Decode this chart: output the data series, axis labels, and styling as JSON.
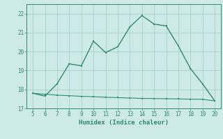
{
  "xlabel": "Humidex (Indice chaleur)",
  "x_main": [
    5,
    6,
    7,
    8,
    9,
    10,
    11,
    12,
    13,
    14,
    15,
    16,
    17,
    18,
    19,
    20
  ],
  "y_main": [
    17.8,
    17.65,
    18.3,
    19.35,
    19.25,
    20.55,
    19.95,
    20.25,
    21.3,
    21.9,
    21.45,
    21.35,
    20.3,
    19.1,
    18.3,
    17.4
  ],
  "x_flat": [
    5,
    6,
    7,
    8,
    9,
    10,
    11,
    12,
    13,
    14,
    15,
    16,
    17,
    18,
    19,
    20
  ],
  "y_flat": [
    17.8,
    17.75,
    17.7,
    17.67,
    17.64,
    17.62,
    17.59,
    17.57,
    17.55,
    17.53,
    17.52,
    17.51,
    17.5,
    17.49,
    17.48,
    17.4
  ],
  "line_color": "#2e8b70",
  "bg_color": "#ceeae8",
  "grid_color": "#9eccc8",
  "xlim": [
    4.5,
    20.5
  ],
  "ylim": [
    17.0,
    22.5
  ],
  "yticks": [
    17,
    18,
    19,
    20,
    21,
    22
  ],
  "xticks": [
    5,
    6,
    7,
    8,
    9,
    10,
    11,
    12,
    13,
    14,
    15,
    16,
    17,
    18,
    19,
    20
  ]
}
